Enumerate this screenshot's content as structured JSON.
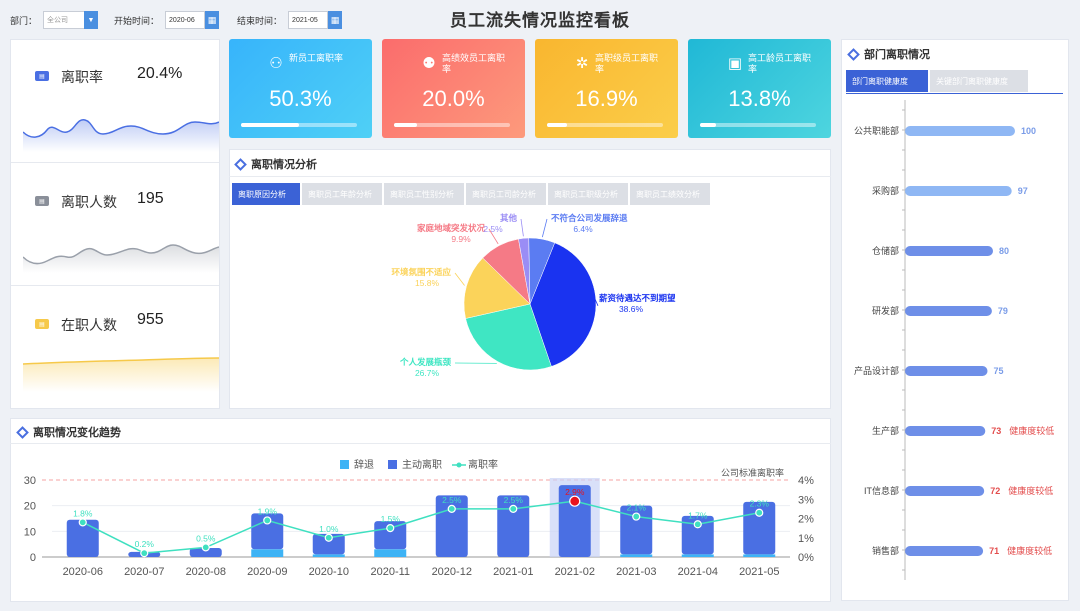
{
  "page": {
    "title": "员工流失情况监控看板"
  },
  "filters": {
    "dept_label": "部门：",
    "dept_value": "全公司",
    "start_label": "开始时间：",
    "start_value": "2020-06",
    "end_label": "结束时间：",
    "end_value": "2021-05"
  },
  "mini_cards": [
    {
      "label": "离职率",
      "value": "20.4%"
    },
    {
      "label": "离职人数",
      "value": "195"
    },
    {
      "label": "在职人数",
      "value": "955"
    }
  ],
  "kpis": [
    {
      "title": "新员工离职率",
      "value": "50.3%",
      "progress": 0.503,
      "color_a": "#37b4fb",
      "color_b": "#4fd0f6",
      "icon": "user-icon"
    },
    {
      "title": "高绩效员工离职率",
      "value": "20.0%",
      "progress": 0.2,
      "color_a": "#fb6c6c",
      "color_b": "#fd9a7c",
      "icon": "user-star-icon"
    },
    {
      "title": "高职级员工离职率",
      "value": "16.9%",
      "progress": 0.169,
      "color_a": "#f9b62f",
      "color_b": "#fbce4a",
      "icon": "gear-icon"
    },
    {
      "title": "高工龄员工离职率",
      "value": "13.8%",
      "progress": 0.138,
      "color_a": "#20b8d6",
      "color_b": "#4ed5df",
      "icon": "chart-icon"
    }
  ],
  "analysis": {
    "title": "离职情况分析",
    "tabs": [
      "离职原因分析",
      "离职员工年龄分析",
      "离职员工性别分析",
      "离职员工司龄分析",
      "离职员工职级分析",
      "离职员工绩效分析"
    ]
  },
  "trend": {
    "title": "离职情况变化趋势"
  },
  "dept": {
    "title": "部门离职情况",
    "tabs": [
      "部门离职健康度",
      "关键部门离职健康度"
    ],
    "warn_text": "健康度较低"
  },
  "chart_data": [
    {
      "type": "pie",
      "name": "reasons",
      "slices": [
        {
          "label": "薪资待遇达不到期望",
          "value": 38.6,
          "pct": "38.6%",
          "color": "#1a33f0"
        },
        {
          "label": "个人发展瓶颈",
          "value": 26.7,
          "pct": "26.7%",
          "color": "#3fe6c3"
        },
        {
          "label": "环境氛围不适应",
          "value": 15.8,
          "pct": "15.8%",
          "color": "#fbd35a"
        },
        {
          "label": "家庭地域突发状况",
          "value": 9.9,
          "pct": "9.9%",
          "color": "#f57a86"
        },
        {
          "label": "其他",
          "value": 2.5,
          "pct": "2.5%",
          "color": "#9a8df5"
        },
        {
          "label": "不符合公司发展辞退",
          "value": 6.4,
          "pct": "6.4%",
          "color": "#5b7cf2"
        }
      ]
    },
    {
      "type": "bar",
      "name": "trend",
      "categories": [
        "2020-06",
        "2020-07",
        "2020-08",
        "2020-09",
        "2020-10",
        "2020-11",
        "2020-12",
        "2021-01",
        "2021-02",
        "2021-03",
        "2021-04",
        "2021-05"
      ],
      "series": [
        {
          "name": "辞退",
          "values": [
            0,
            0,
            0,
            3,
            1,
            3,
            0,
            0,
            0,
            1,
            1,
            1
          ],
          "color": "#3eb3f5"
        },
        {
          "name": "主动离职",
          "values": [
            14.5,
            2,
            3.5,
            14,
            8,
            11,
            24,
            24,
            28,
            19,
            15,
            20.5
          ],
          "color": "#4a6fe3"
        },
        {
          "name": "离职率",
          "values": [
            1.8,
            0.2,
            0.5,
            1.9,
            1.0,
            1.5,
            2.5,
            2.5,
            2.9,
            2.1,
            1.7,
            2.3
          ],
          "labels": [
            "1.8%",
            "0.2%",
            "0.5%",
            "1.9%",
            "1.0%",
            "1.5%",
            "2.5%",
            "2.5%",
            "2.9%",
            "2.1%",
            "1.7%",
            "2.3%"
          ],
          "color": "#3fe0c0"
        }
      ],
      "y_left_ticks": [
        "0",
        "10",
        "20",
        "30"
      ],
      "ylim_left": [
        0,
        30
      ],
      "y_right_ticks": [
        "0%",
        "1%",
        "2%",
        "3%",
        "4%"
      ],
      "ylim_right": [
        0,
        4
      ],
      "reference_line": {
        "label": "公司标准离职率",
        "value": 4
      },
      "highlight": "2021-02"
    },
    {
      "type": "bar",
      "name": "dept_health",
      "orientation": "horizontal",
      "categories": [
        "公共职能部",
        "采购部",
        "仓储部",
        "研发部",
        "产品设计部",
        "生产部",
        "IT信息部",
        "销售部"
      ],
      "values": [
        100,
        97,
        80,
        79,
        75,
        73,
        72,
        71
      ],
      "low_health": [
        false,
        false,
        false,
        false,
        false,
        true,
        true,
        true
      ],
      "xlim": [
        0,
        100
      ]
    }
  ]
}
